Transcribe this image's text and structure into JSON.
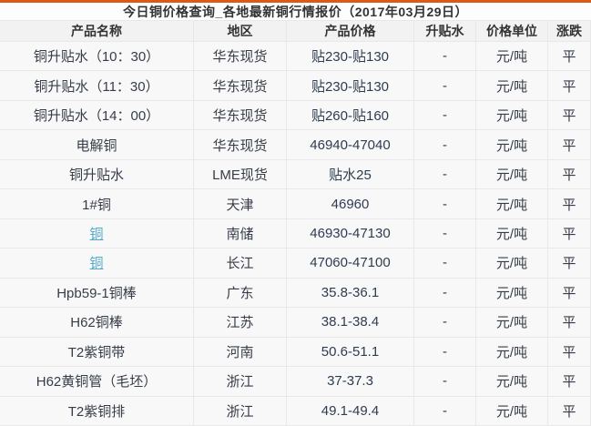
{
  "accent_color": "#dc5a12",
  "link_color": "#53a9c9",
  "title": "今日铜价格查询_各地最新铜行情报价（2017年03月29日）",
  "table": {
    "columns": [
      {
        "key": "name",
        "label": "产品名称"
      },
      {
        "key": "region",
        "label": "地区"
      },
      {
        "key": "price",
        "label": "产品价格"
      },
      {
        "key": "premium",
        "label": "升贴水"
      },
      {
        "key": "unit",
        "label": "价格单位"
      },
      {
        "key": "change",
        "label": "涨跌"
      }
    ],
    "rows": [
      {
        "name": "铜升贴水（10：30）",
        "region": "华东现货",
        "price": "贴230-贴130",
        "premium": "-",
        "unit": "元/吨",
        "change": "平",
        "name_is_link": false
      },
      {
        "name": "铜升贴水（11：30）",
        "region": "华东现货",
        "price": "贴230-贴130",
        "premium": "-",
        "unit": "元/吨",
        "change": "平",
        "name_is_link": false
      },
      {
        "name": "铜升贴水（14：00）",
        "region": "华东现货",
        "price": "贴260-贴160",
        "premium": "-",
        "unit": "元/吨",
        "change": "平",
        "name_is_link": false
      },
      {
        "name": "电解铜",
        "region": "华东现货",
        "price": "46940-47040",
        "premium": "-",
        "unit": "元/吨",
        "change": "平",
        "name_is_link": false
      },
      {
        "name": "铜升贴水",
        "region": "LME现货",
        "price": "贴水25",
        "premium": "-",
        "unit": "元/吨",
        "change": "平",
        "name_is_link": false
      },
      {
        "name": "1#铜",
        "region": "天津",
        "price": "46960",
        "premium": "-",
        "unit": "元/吨",
        "change": "平",
        "name_is_link": false
      },
      {
        "name": "铜",
        "region": "南储",
        "price": "46930-47130",
        "premium": "-",
        "unit": "元/吨",
        "change": "平",
        "name_is_link": true
      },
      {
        "name": "铜",
        "region": "长江",
        "price": "47060-47100",
        "premium": "-",
        "unit": "元/吨",
        "change": "平",
        "name_is_link": true
      },
      {
        "name": "Hpb59-1铜棒",
        "region": "广东",
        "price": "35.8-36.1",
        "premium": "-",
        "unit": "元/吨",
        "change": "平",
        "name_is_link": false
      },
      {
        "name": "H62铜棒",
        "region": "江苏",
        "price": "38.1-38.4",
        "premium": "-",
        "unit": "元/吨",
        "change": "平",
        "name_is_link": false
      },
      {
        "name": "T2紫铜带",
        "region": "河南",
        "price": "50.6-51.1",
        "premium": "-",
        "unit": "元/吨",
        "change": "平",
        "name_is_link": false
      },
      {
        "name": "H62黄铜管（毛坯）",
        "region": "浙江",
        "price": "37-37.3",
        "premium": "-",
        "unit": "元/吨",
        "change": "平",
        "name_is_link": false
      },
      {
        "name": "T2紫铜排",
        "region": "浙江",
        "price": "49.1-49.4",
        "premium": "-",
        "unit": "元/吨",
        "change": "平",
        "name_is_link": false
      }
    ]
  }
}
